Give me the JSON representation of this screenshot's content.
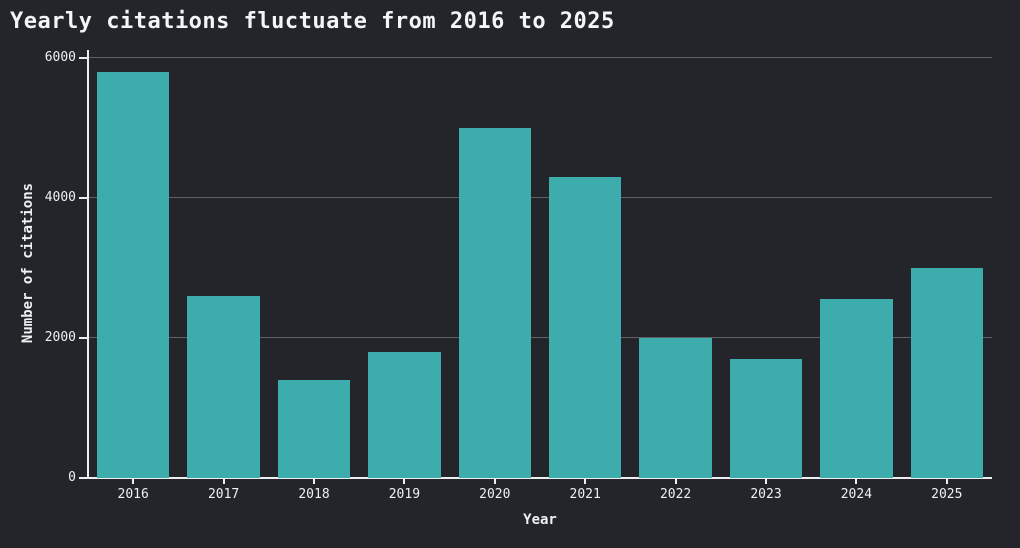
{
  "title": "Yearly citations fluctuate from 2016 to 2025",
  "colors": {
    "background": "#23252a",
    "bar": "#3dacac",
    "text": "#eef0f2",
    "axis": "#eceef1",
    "grid": "rgba(255,255,255,0.28)"
  },
  "chart_data": {
    "type": "bar",
    "title": "Yearly citations fluctuate from 2016 to 2025",
    "categories": [
      "2016",
      "2017",
      "2018",
      "2019",
      "2020",
      "2021",
      "2022",
      "2023",
      "2024",
      "2025"
    ],
    "values": [
      5800,
      2600,
      1400,
      1800,
      5000,
      4300,
      2000,
      1700,
      2550,
      3000
    ],
    "xlabel": "Year",
    "ylabel": "Number of citations",
    "ylim": [
      0,
      6100
    ],
    "yticks": [
      0,
      2000,
      4000,
      6000
    ],
    "grid": true,
    "legend": "none",
    "bar_color": "#3dacac"
  }
}
